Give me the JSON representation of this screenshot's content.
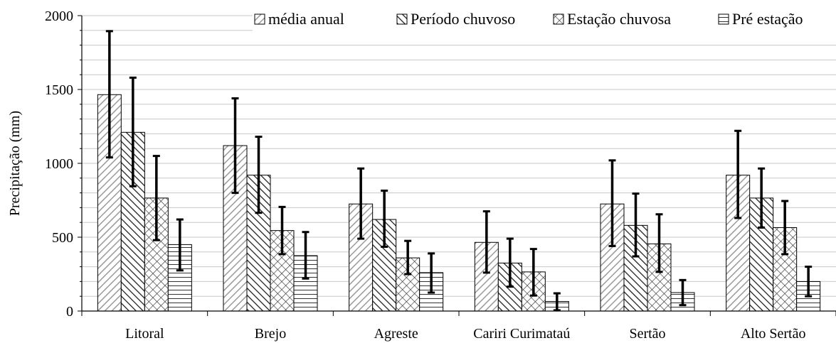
{
  "chart_data": {
    "type": "bar",
    "title": "",
    "xlabel": "",
    "ylabel": "Precipitação (mm)",
    "ylim": [
      0,
      2000
    ],
    "yticks": [
      "0",
      "500",
      "1000",
      "1500",
      "2000"
    ],
    "grid": true,
    "legend_position": "top-right",
    "categories": [
      "Litoral",
      "Brejo",
      "Agreste",
      "Cariri Curimataú",
      "Sertão",
      "Alto Sertão"
    ],
    "series": [
      {
        "name": "média anual",
        "pattern": "diagonal-light",
        "values": [
          1465,
          1120,
          725,
          465,
          725,
          920
        ],
        "error_low": [
          1040,
          800,
          490,
          260,
          440,
          630
        ],
        "error_high": [
          1895,
          1440,
          965,
          675,
          1020,
          1220
        ]
      },
      {
        "name": "Período chuvoso",
        "pattern": "diagonal-dark",
        "values": [
          1210,
          920,
          620,
          325,
          580,
          765
        ],
        "error_low": [
          845,
          665,
          435,
          165,
          370,
          565
        ],
        "error_high": [
          1580,
          1180,
          815,
          490,
          795,
          965
        ]
      },
      {
        "name": "Estação chuvosa",
        "pattern": "crosshatch",
        "values": [
          765,
          545,
          360,
          265,
          455,
          565
        ],
        "error_low": [
          480,
          385,
          250,
          105,
          265,
          385
        ],
        "error_high": [
          1050,
          705,
          475,
          420,
          655,
          745
        ]
      },
      {
        "name": "Pré estação",
        "pattern": "horizontal",
        "values": [
          450,
          375,
          260,
          65,
          125,
          200
        ],
        "error_low": [
          275,
          220,
          125,
          5,
          40,
          100
        ],
        "error_high": [
          620,
          535,
          390,
          120,
          210,
          300
        ]
      }
    ],
    "colors": {
      "bar_stroke": "#000000",
      "hatch": "#000000",
      "hatch_light": "#9a9a9a",
      "grid": "#c8c8c8",
      "error_bar": "#000000"
    }
  }
}
